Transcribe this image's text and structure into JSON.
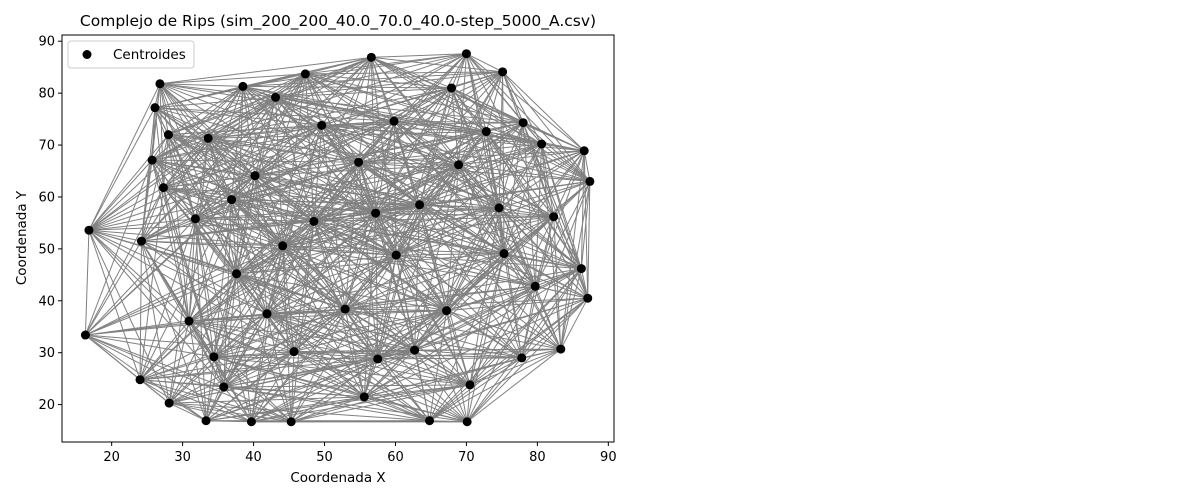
{
  "chart_data": {
    "type": "scatter",
    "title": "Complejo de Rips (sim_200_200_40.0_70.0_40.0-step_5000_A.csv)",
    "xlabel": "Coordenada X",
    "ylabel": "Coordenada Y",
    "xlim": [
      13.0,
      90.8
    ],
    "ylim": [
      12.8,
      91.2
    ],
    "xticks": [
      20,
      30,
      40,
      50,
      60,
      70,
      80,
      90
    ],
    "yticks": [
      20,
      30,
      40,
      50,
      60,
      70,
      80,
      90
    ],
    "legend": {
      "placement": "top-left",
      "label": "Centroides"
    },
    "grid": false,
    "colors": {
      "points": "#000000",
      "edges": "#808080"
    },
    "series": [
      {
        "name": "Centroides",
        "points": [
          [
            16.3,
            33.4
          ],
          [
            16.8,
            53.6
          ],
          [
            24.0,
            24.8
          ],
          [
            28.1,
            20.3
          ],
          [
            33.3,
            16.9
          ],
          [
            39.7,
            16.7
          ],
          [
            45.3,
            16.7
          ],
          [
            64.8,
            16.9
          ],
          [
            70.1,
            16.7
          ],
          [
            77.8,
            29.0
          ],
          [
            83.3,
            30.7
          ],
          [
            87.1,
            40.5
          ],
          [
            86.2,
            46.2
          ],
          [
            87.4,
            63.0
          ],
          [
            86.6,
            68.9
          ],
          [
            80.6,
            70.2
          ],
          [
            78.0,
            74.3
          ],
          [
            75.1,
            84.1
          ],
          [
            70.0,
            87.6
          ],
          [
            56.6,
            86.9
          ],
          [
            47.3,
            83.7
          ],
          [
            38.5,
            81.3
          ],
          [
            26.8,
            81.8
          ],
          [
            26.1,
            77.2
          ],
          [
            25.7,
            67.1
          ],
          [
            28.0,
            72.0
          ],
          [
            24.2,
            51.5
          ],
          [
            27.3,
            61.8
          ],
          [
            57.5,
            28.8
          ],
          [
            82.3,
            56.2
          ],
          [
            79.7,
            42.8
          ],
          [
            33.6,
            71.3
          ],
          [
            67.9,
            81.0
          ],
          [
            43.1,
            79.2
          ],
          [
            30.9,
            36.1
          ],
          [
            70.5,
            23.8
          ],
          [
            55.6,
            21.5
          ],
          [
            35.8,
            23.4
          ],
          [
            74.6,
            57.9
          ],
          [
            59.8,
            74.6
          ],
          [
            40.2,
            64.1
          ],
          [
            48.5,
            55.3
          ],
          [
            60.1,
            48.8
          ],
          [
            37.6,
            45.2
          ],
          [
            52.9,
            38.4
          ],
          [
            67.2,
            38.1
          ],
          [
            45.7,
            30.2
          ],
          [
            68.9,
            66.2
          ],
          [
            31.8,
            55.8
          ],
          [
            54.8,
            66.7
          ],
          [
            63.4,
            58.5
          ],
          [
            41.9,
            37.5
          ],
          [
            75.3,
            49.1
          ],
          [
            49.6,
            73.8
          ],
          [
            34.4,
            29.2
          ],
          [
            62.7,
            30.5
          ],
          [
            72.8,
            72.6
          ],
          [
            44.1,
            50.6
          ],
          [
            57.2,
            56.9
          ],
          [
            36.9,
            59.5
          ]
        ]
      }
    ],
    "edges_threshold": 40.0
  }
}
